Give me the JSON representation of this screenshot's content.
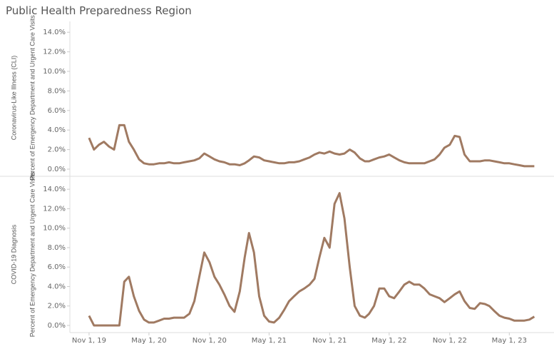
{
  "chart_data": {
    "type": "line",
    "title": "Public Health Preparedness Region",
    "x": [
      "2019-11-01",
      "2019-11-16",
      "2019-12-01",
      "2019-12-16",
      "2020-01-01",
      "2020-01-16",
      "2020-02-01",
      "2020-02-16",
      "2020-03-01",
      "2020-03-16",
      "2020-04-01",
      "2020-04-16",
      "2020-05-01",
      "2020-05-16",
      "2020-06-01",
      "2020-06-16",
      "2020-07-01",
      "2020-07-16",
      "2020-08-01",
      "2020-08-16",
      "2020-09-01",
      "2020-09-16",
      "2020-10-01",
      "2020-10-16",
      "2020-11-01",
      "2020-11-16",
      "2020-12-01",
      "2020-12-16",
      "2021-01-01",
      "2021-01-16",
      "2021-02-01",
      "2021-02-16",
      "2021-03-01",
      "2021-03-16",
      "2021-04-01",
      "2021-04-16",
      "2021-05-01",
      "2021-05-16",
      "2021-06-01",
      "2021-06-16",
      "2021-07-01",
      "2021-07-16",
      "2021-08-01",
      "2021-08-16",
      "2021-09-01",
      "2021-09-16",
      "2021-10-01",
      "2021-10-16",
      "2021-11-01",
      "2021-11-16",
      "2021-12-01",
      "2021-12-16",
      "2022-01-01",
      "2022-01-16",
      "2022-02-01",
      "2022-02-16",
      "2022-03-01",
      "2022-03-16",
      "2022-04-01",
      "2022-04-16",
      "2022-05-01",
      "2022-05-16",
      "2022-06-01",
      "2022-06-16",
      "2022-07-01",
      "2022-07-16",
      "2022-08-01",
      "2022-08-16",
      "2022-09-01",
      "2022-09-16",
      "2022-10-01",
      "2022-10-16",
      "2022-11-01",
      "2022-11-16",
      "2022-12-01",
      "2022-12-16",
      "2023-01-01",
      "2023-01-16",
      "2023-02-01",
      "2023-02-16",
      "2023-03-01",
      "2023-03-16",
      "2023-04-01",
      "2023-04-16",
      "2023-05-01",
      "2023-05-16",
      "2023-06-01",
      "2023-06-16",
      "2023-07-01",
      "2023-07-16"
    ],
    "xlim": [
      "2019-09-08",
      "2023-08-08"
    ],
    "xticks": [
      {
        "value": "2019-11-01",
        "label": "Nov 1, 19"
      },
      {
        "value": "2020-05-01",
        "label": "May 1, 20"
      },
      {
        "value": "2020-11-01",
        "label": "Nov 1, 20"
      },
      {
        "value": "2021-05-01",
        "label": "May 1, 21"
      },
      {
        "value": "2021-11-01",
        "label": "Nov 1, 21"
      },
      {
        "value": "2022-05-01",
        "label": "May 1, 22"
      },
      {
        "value": "2022-11-01",
        "label": "Nov 1, 22"
      },
      {
        "value": "2023-05-01",
        "label": "May 1, 23"
      }
    ],
    "panels": [
      {
        "y_label": "Percent of Emergency Department and Urgent Care Visits",
        "ylim": [
          0,
          14.6
        ],
        "yticks": [
          {
            "value": 0,
            "label": "0.0%"
          },
          {
            "value": 2,
            "label": "2.0%"
          },
          {
            "value": 4,
            "label": "4.0%"
          },
          {
            "value": 6,
            "label": "6.0%"
          },
          {
            "value": 8,
            "label": "8.0%"
          },
          {
            "value": 10,
            "label": "10.0%"
          },
          {
            "value": 12,
            "label": "12.0%"
          },
          {
            "value": 14,
            "label": "14.0%"
          }
        ],
        "series": [
          {
            "name": "Coronavirus-Like Illness (CLI)",
            "color": "#a07a62",
            "values": [
              3.2,
              2.0,
              2.5,
              2.8,
              2.3,
              2.0,
              4.5,
              4.5,
              2.8,
              2.0,
              1.0,
              0.6,
              0.5,
              0.5,
              0.6,
              0.6,
              0.7,
              0.6,
              0.6,
              0.7,
              0.8,
              0.9,
              1.1,
              1.6,
              1.3,
              1.0,
              0.8,
              0.7,
              0.5,
              0.5,
              0.4,
              0.6,
              0.9,
              1.3,
              1.2,
              0.9,
              0.8,
              0.7,
              0.6,
              0.6,
              0.7,
              0.7,
              0.8,
              1.0,
              1.2,
              1.5,
              1.7,
              1.6,
              1.8,
              1.6,
              1.5,
              1.6,
              2.0,
              1.7,
              1.1,
              0.8,
              0.8,
              1.0,
              1.2,
              1.3,
              1.5,
              1.2,
              0.9,
              0.7,
              0.6,
              0.6,
              0.6,
              0.6,
              0.8,
              1.0,
              1.5,
              2.2,
              2.5,
              3.4,
              3.3,
              1.5,
              0.8,
              0.8,
              0.8,
              0.9,
              0.9,
              0.8,
              0.7,
              0.6,
              0.6,
              0.5,
              0.4,
              0.3,
              0.3,
              0.3
            ]
          }
        ]
      },
      {
        "y_label": "Percent of Emergency Department and Urgent Care Visits",
        "ylim": [
          0,
          14.6
        ],
        "yticks": [
          {
            "value": 0,
            "label": "0.0%"
          },
          {
            "value": 2,
            "label": "2.0%"
          },
          {
            "value": 4,
            "label": "4.0%"
          },
          {
            "value": 6,
            "label": "6.0%"
          },
          {
            "value": 8,
            "label": "8.0%"
          },
          {
            "value": 10,
            "label": "10.0%"
          },
          {
            "value": 12,
            "label": "12.0%"
          },
          {
            "value": 14,
            "label": "14.0%"
          }
        ],
        "series": [
          {
            "name": "COVID-19 Diagnosis",
            "color": "#a07a62",
            "values": [
              1.0,
              0.0,
              0.0,
              0.0,
              0.0,
              0.0,
              0.0,
              4.5,
              5.0,
              3.0,
              1.5,
              0.6,
              0.3,
              0.3,
              0.5,
              0.7,
              0.7,
              0.8,
              0.8,
              0.8,
              1.2,
              2.5,
              5.0,
              7.5,
              6.5,
              5.0,
              4.2,
              3.2,
              2.0,
              1.4,
              3.5,
              7.0,
              9.5,
              7.5,
              3.0,
              1.0,
              0.4,
              0.3,
              0.8,
              1.6,
              2.5,
              3.0,
              3.5,
              3.8,
              4.2,
              4.8,
              7.0,
              9.0,
              8.0,
              12.5,
              13.6,
              11.0,
              6.0,
              2.0,
              1.0,
              0.8,
              1.2,
              2.0,
              3.8,
              3.8,
              3.0,
              2.8,
              3.5,
              4.2,
              4.5,
              4.2,
              4.2,
              3.8,
              3.2,
              3.0,
              2.8,
              2.4,
              2.8,
              3.2,
              3.5,
              2.5,
              1.8,
              1.7,
              2.3,
              2.2,
              2.0,
              1.5,
              1.0,
              0.8,
              0.7,
              0.5,
              0.5,
              0.5,
              0.6,
              0.9
            ]
          }
        ]
      }
    ]
  }
}
